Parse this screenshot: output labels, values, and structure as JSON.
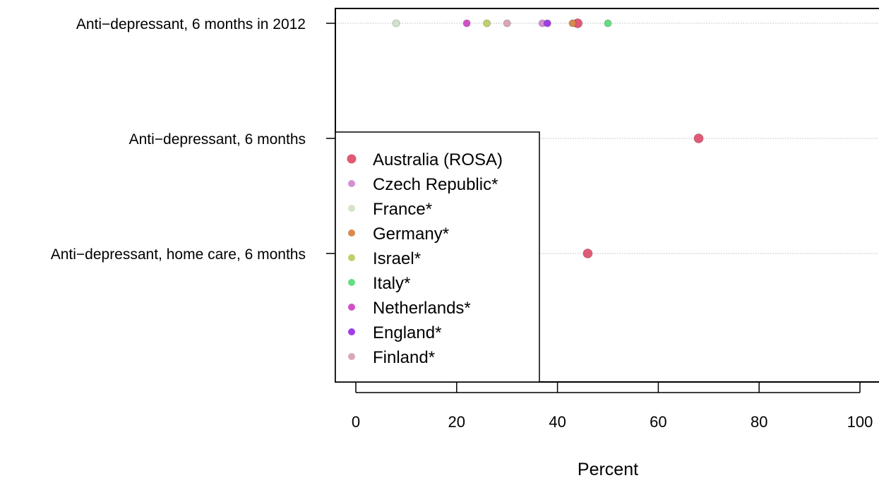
{
  "chart_data": {
    "type": "scatter",
    "xlabel": "Percent",
    "ylabel": "",
    "xlim": [
      -4,
      104
    ],
    "x_ticks": [
      0,
      20,
      40,
      60,
      80,
      100
    ],
    "x_tick_labels": [
      "0",
      "20",
      "40",
      "60",
      "80",
      "100"
    ],
    "grid": "dotted horizontal guide per category",
    "legend_position": "left",
    "categories": [
      "Anti−depressant, 6 months in 2012",
      "Anti−depressant, 6 months",
      "Anti−depressant, home care, 6 months"
    ],
    "series": [
      {
        "name": "Australia (ROSA)",
        "color": "#e05a75",
        "size": "large",
        "values": [
          44,
          68,
          46
        ]
      },
      {
        "name": "Czech Republic*",
        "color": "#d48ed4",
        "size": "small",
        "values": [
          37,
          null,
          null
        ]
      },
      {
        "name": "France*",
        "color": "#d3e3cc",
        "size": "small",
        "values": [
          8,
          null,
          null
        ]
      },
      {
        "name": "Germany*",
        "color": "#d9884e",
        "size": "small",
        "values": [
          43,
          null,
          null
        ]
      },
      {
        "name": "Israel*",
        "color": "#c3cf6b",
        "size": "small",
        "values": [
          26,
          null,
          null
        ]
      },
      {
        "name": "Italy*",
        "color": "#66dd80",
        "size": "small",
        "values": [
          50,
          null,
          null
        ]
      },
      {
        "name": "Netherlands*",
        "color": "#d250c8",
        "size": "small",
        "values": [
          22,
          null,
          null
        ]
      },
      {
        "name": "England*",
        "color": "#9f3ee6",
        "size": "small",
        "values": [
          38,
          null,
          null
        ]
      },
      {
        "name": "Finland*",
        "color": "#d9a8b5",
        "size": "small",
        "values": [
          30,
          null,
          null
        ]
      }
    ]
  }
}
